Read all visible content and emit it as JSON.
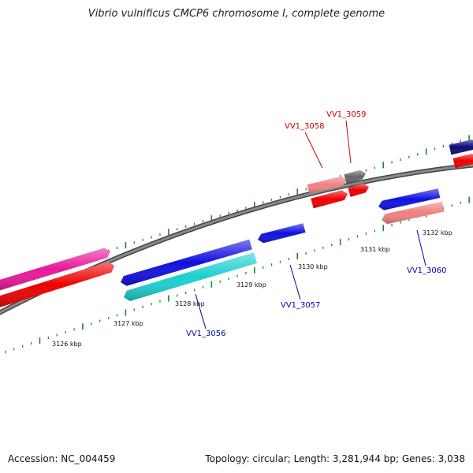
{
  "title": "Vibrio vulnificus CMCP6 chromosome I, complete genome",
  "footer": {
    "accession": "Accession: NC_004459",
    "summary": "Topology: circular; Length: 3,281,944 bp; Genes: 3,038"
  },
  "colors": {
    "backbone": "#7a7a7a",
    "tick": "#1f8a1f",
    "gene_label_forward": "#d00000",
    "gene_label_reverse": "#0000b0"
  },
  "scale_labels": [
    "3126 kbp",
    "3127 kbp",
    "3128 kbp",
    "3129 kbp",
    "3130 kbp",
    "3131 kbp",
    "3132 kbp"
  ],
  "gene_labels": [
    {
      "name": "VV1_3058",
      "strand": "forward"
    },
    {
      "name": "VV1_3059",
      "strand": "forward"
    },
    {
      "name": "VV1_3056",
      "strand": "reverse"
    },
    {
      "name": "VV1_3057",
      "strand": "reverse"
    },
    {
      "name": "VV1_3060",
      "strand": "reverse"
    }
  ],
  "features": [
    {
      "id": "magenta-forward-gene",
      "color": "#e8189a",
      "strand": "forward"
    },
    {
      "id": "red-forward-cds-1",
      "color": "#ee0000",
      "strand": "forward"
    },
    {
      "id": "blue-reverse-gene-3056",
      "color": "#1010e0",
      "strand": "reverse"
    },
    {
      "id": "cyan-reverse-cds-3056",
      "color": "#1ccfcf",
      "strand": "reverse"
    },
    {
      "id": "blue-reverse-gene-3057",
      "color": "#1010e0",
      "strand": "reverse"
    },
    {
      "id": "pink-forward-gene-3058",
      "color": "#f08080",
      "strand": "forward"
    },
    {
      "id": "grey-forward-gene-3059",
      "color": "#666666",
      "strand": "forward"
    },
    {
      "id": "red-forward-cds-3058",
      "color": "#ee0000",
      "strand": "forward"
    },
    {
      "id": "red-forward-cds-3059",
      "color": "#ee0000",
      "strand": "forward"
    },
    {
      "id": "blue-reverse-gene-3060",
      "color": "#1010e0",
      "strand": "reverse"
    },
    {
      "id": "pink-reverse-cds-3060",
      "color": "#f08080",
      "strand": "reverse"
    },
    {
      "id": "navy-forward-gene-edge",
      "color": "#0a0a7a",
      "strand": "forward"
    },
    {
      "id": "red-forward-cds-edge",
      "color": "#ee0000",
      "strand": "forward"
    }
  ]
}
